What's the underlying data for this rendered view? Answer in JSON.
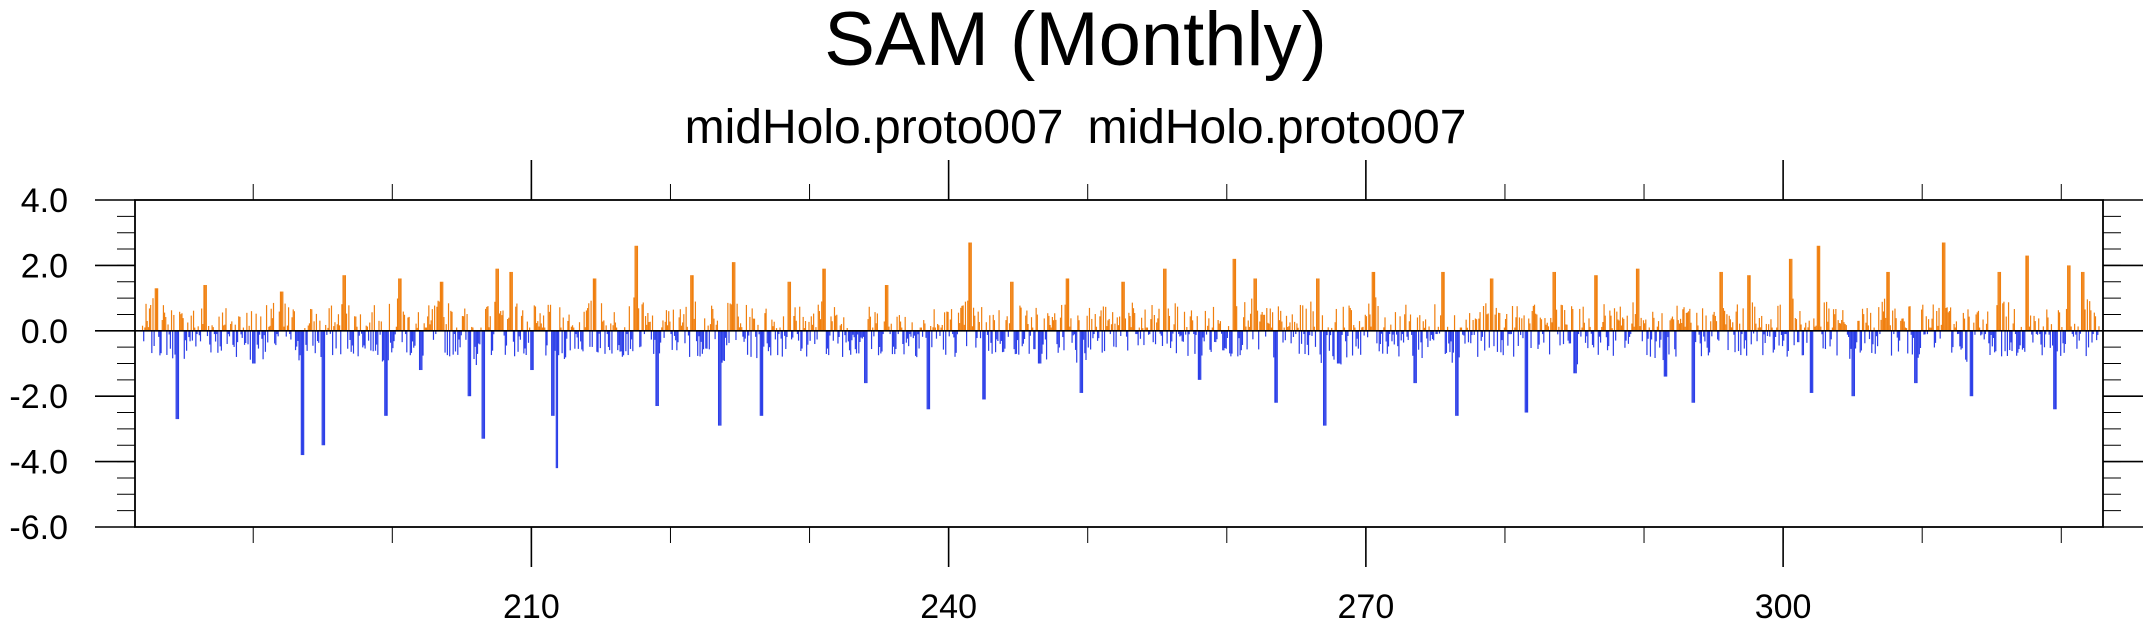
{
  "title": "SAM (Monthly)",
  "subtitle_left": "midHolo.proto007",
  "subtitle_right": "midHolo.proto007",
  "colors": {
    "positive": "#f07f0e",
    "negative": "#2b3ee8",
    "axis": "#000000"
  },
  "chart_data": {
    "type": "bar",
    "title": "SAM (Monthly)",
    "xlim": [
      181.5,
      323
    ],
    "ylim": [
      -6.0,
      4.0
    ],
    "x_major_ticks": [
      210,
      240,
      270,
      300
    ],
    "x_tick_labels": [
      "210",
      "240",
      "270",
      "300"
    ],
    "y_ticks": [
      4.0,
      2.0,
      0.0,
      -2.0,
      -4.0,
      -6.0
    ],
    "y_tick_labels": [
      "4.0",
      "2.0",
      "0.0",
      "-2.0",
      "-4.0",
      "-6.0"
    ],
    "grid": false,
    "legend": "none",
    "note_series": "monthly SAM index bars, orange above zero, blue below zero",
    "anchors": [
      {
        "x": 183.0,
        "y": 1.3
      },
      {
        "x": 184.5,
        "y": -2.7
      },
      {
        "x": 186.5,
        "y": 1.4
      },
      {
        "x": 190.0,
        "y": -1.0
      },
      {
        "x": 192.0,
        "y": 1.2
      },
      {
        "x": 193.5,
        "y": -3.8
      },
      {
        "x": 195.0,
        "y": -3.5
      },
      {
        "x": 196.5,
        "y": 1.7
      },
      {
        "x": 199.5,
        "y": -2.6
      },
      {
        "x": 200.5,
        "y": 1.6
      },
      {
        "x": 202.0,
        "y": -1.2
      },
      {
        "x": 203.5,
        "y": 1.5
      },
      {
        "x": 205.5,
        "y": -2.0
      },
      {
        "x": 206.5,
        "y": -3.3
      },
      {
        "x": 207.5,
        "y": 1.9
      },
      {
        "x": 208.5,
        "y": 1.8
      },
      {
        "x": 210.0,
        "y": -1.2
      },
      {
        "x": 211.5,
        "y": -2.6
      },
      {
        "x": 211.8,
        "y": -4.2
      },
      {
        "x": 214.5,
        "y": 1.6
      },
      {
        "x": 217.5,
        "y": 2.6
      },
      {
        "x": 219.0,
        "y": -2.3
      },
      {
        "x": 221.5,
        "y": 1.7
      },
      {
        "x": 223.5,
        "y": -2.9
      },
      {
        "x": 224.5,
        "y": 2.1
      },
      {
        "x": 226.5,
        "y": -2.6
      },
      {
        "x": 228.5,
        "y": 1.5
      },
      {
        "x": 231.0,
        "y": 1.9
      },
      {
        "x": 234.0,
        "y": -1.6
      },
      {
        "x": 235.5,
        "y": 1.4
      },
      {
        "x": 238.5,
        "y": -2.4
      },
      {
        "x": 241.5,
        "y": 2.7
      },
      {
        "x": 242.5,
        "y": -2.1
      },
      {
        "x": 244.5,
        "y": 1.5
      },
      {
        "x": 246.5,
        "y": -1.0
      },
      {
        "x": 248.5,
        "y": 1.6
      },
      {
        "x": 249.5,
        "y": -1.9
      },
      {
        "x": 252.5,
        "y": 1.5
      },
      {
        "x": 255.5,
        "y": 1.9
      },
      {
        "x": 258.0,
        "y": -1.5
      },
      {
        "x": 260.5,
        "y": 2.2
      },
      {
        "x": 262.0,
        "y": 1.6
      },
      {
        "x": 263.5,
        "y": -2.2
      },
      {
        "x": 266.5,
        "y": 1.6
      },
      {
        "x": 267.0,
        "y": -2.9
      },
      {
        "x": 268.0,
        "y": -1.0
      },
      {
        "x": 270.5,
        "y": 1.8
      },
      {
        "x": 273.5,
        "y": -1.6
      },
      {
        "x": 275.5,
        "y": 1.8
      },
      {
        "x": 276.5,
        "y": -2.6
      },
      {
        "x": 279.0,
        "y": 1.6
      },
      {
        "x": 281.5,
        "y": -2.5
      },
      {
        "x": 283.5,
        "y": 1.8
      },
      {
        "x": 285.0,
        "y": -1.3
      },
      {
        "x": 286.5,
        "y": 1.7
      },
      {
        "x": 289.5,
        "y": 1.9
      },
      {
        "x": 291.5,
        "y": -1.4
      },
      {
        "x": 293.5,
        "y": -2.2
      },
      {
        "x": 295.5,
        "y": 1.8
      },
      {
        "x": 297.5,
        "y": 1.7
      },
      {
        "x": 300.5,
        "y": 2.2
      },
      {
        "x": 302.0,
        "y": -1.9
      },
      {
        "x": 302.5,
        "y": 2.6
      },
      {
        "x": 305.0,
        "y": -2.0
      },
      {
        "x": 307.5,
        "y": 1.8
      },
      {
        "x": 309.5,
        "y": -1.6
      },
      {
        "x": 311.5,
        "y": 2.7
      },
      {
        "x": 313.5,
        "y": -2.0
      },
      {
        "x": 315.5,
        "y": 1.8
      },
      {
        "x": 317.5,
        "y": 2.3
      },
      {
        "x": 319.5,
        "y": -2.4
      },
      {
        "x": 320.5,
        "y": 2.0
      },
      {
        "x": 321.5,
        "y": 1.8
      }
    ]
  }
}
